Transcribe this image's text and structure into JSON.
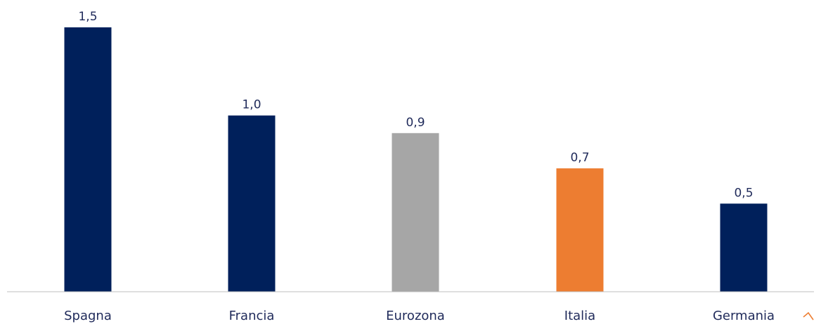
{
  "chart_data": {
    "type": "bar",
    "categories": [
      "Spagna",
      "Francia",
      "Eurozona",
      "Italia",
      "Germania"
    ],
    "values": [
      1.5,
      1.0,
      0.9,
      0.7,
      0.5
    ],
    "value_labels": [
      "1,5",
      "1,0",
      "0,9",
      "0,7",
      "0,5"
    ],
    "bar_colors": [
      "#00205b",
      "#00205b",
      "#a6a6a6",
      "#ed7d31",
      "#00205b"
    ],
    "label_color": "#1f2a5a",
    "axis_color": "#bfbfbf",
    "title": "",
    "xlabel": "",
    "ylabel": "",
    "ylim": [
      0,
      1.5
    ],
    "grid": false,
    "legend": "none"
  }
}
